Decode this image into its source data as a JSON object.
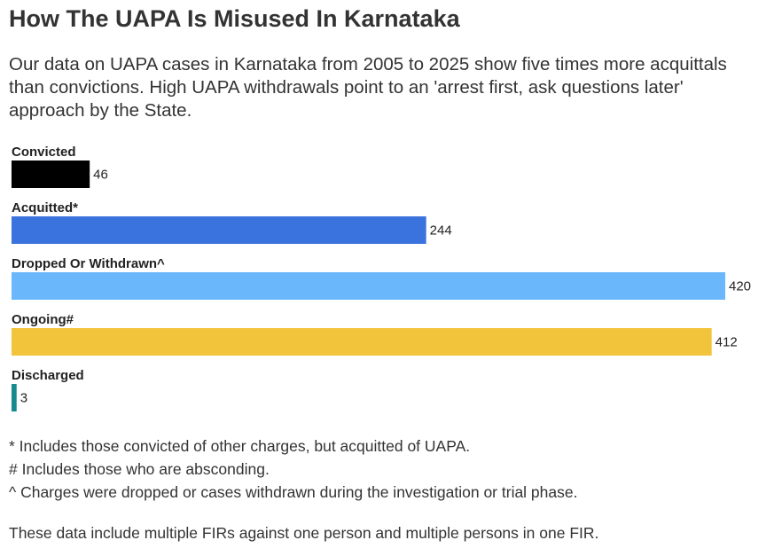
{
  "title": "How The UAPA Is Misused In Karnataka",
  "subtitle": "Our data on UAPA cases in Karnataka from 2005 to 2025 show five times more acquittals than convictions. High UAPA withdrawals point to an 'arrest first, ask questions later' approach by the State.",
  "chart_data": {
    "type": "bar",
    "orientation": "horizontal",
    "categories": [
      "Convicted",
      "Acquitted*",
      "Dropped Or Withdrawn^",
      "Ongoing#",
      "Discharged"
    ],
    "values": [
      46,
      244,
      420,
      412,
      3
    ],
    "colors": [
      "#000000",
      "#3a73dd",
      "#6ab8fb",
      "#f2c43b",
      "#168a8e"
    ],
    "xlim": [
      0,
      420
    ],
    "grid": false,
    "data_labels": true
  },
  "notes": {
    "asterisk": "* Includes those convicted of other charges, but acquitted of UAPA.",
    "hash": "# Includes those who are absconding.",
    "caret": "^ Charges were dropped or cases withdrawn during the investigation or trial phase.",
    "source": "These data include multiple FIRs against one person and multiple persons in one FIR."
  }
}
